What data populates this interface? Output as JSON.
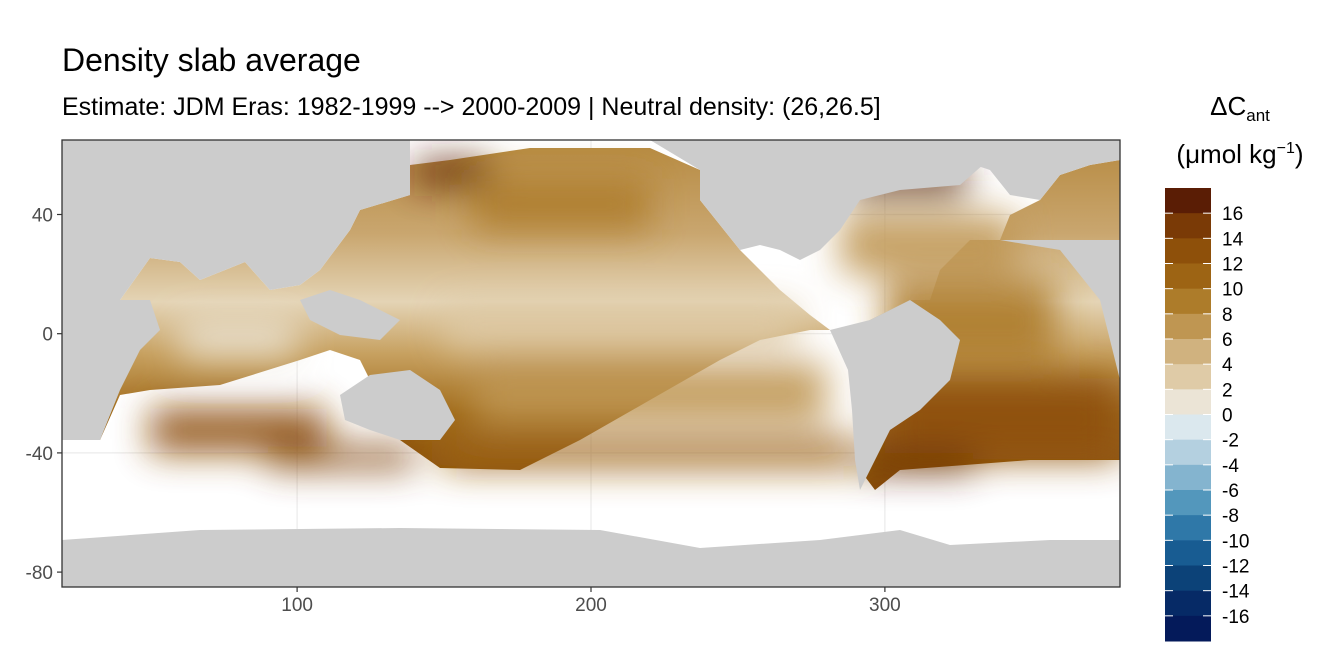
{
  "chart_data": {
    "type": "heatmap",
    "title": "Density slab average",
    "subtitle": "Estimate: JDM Eras: 1982-1999 --> 2000-2009 | Neutral density: (26,26.5]",
    "xlabel": "",
    "ylabel": "",
    "xlim": [
      20,
      380
    ],
    "ylim": [
      -85,
      65
    ],
    "x_ticks": [
      100,
      200,
      300
    ],
    "y_ticks": [
      40,
      0,
      -40,
      -80
    ],
    "grid": true,
    "legend": {
      "title_main": "ΔC",
      "title_sub": "ant",
      "unit_open": "(μmol kg",
      "unit_sup": "−1",
      "unit_close": ")",
      "placement": "right",
      "labels": [
        "16",
        "14",
        "12",
        "10",
        "8",
        "6",
        "4",
        "2",
        "0",
        "-2",
        "-4",
        "-6",
        "-8",
        "-10",
        "-12",
        "-14",
        "-16"
      ],
      "bins": [
        {
          "lo": 16,
          "hi": 18,
          "color": "#5a1d05"
        },
        {
          "lo": 14,
          "hi": 16,
          "color": "#7a3a06"
        },
        {
          "lo": 12,
          "hi": 14,
          "color": "#8e500a"
        },
        {
          "lo": 10,
          "hi": 12,
          "color": "#9d6414"
        },
        {
          "lo": 8,
          "hi": 10,
          "color": "#ad7c2a"
        },
        {
          "lo": 6,
          "hi": 8,
          "color": "#bf9652"
        },
        {
          "lo": 4,
          "hi": 6,
          "color": "#d0b27f"
        },
        {
          "lo": 2,
          "hi": 4,
          "color": "#dfcba7"
        },
        {
          "lo": 0,
          "hi": 2,
          "color": "#ebe4d6"
        },
        {
          "lo": -2,
          "hi": 0,
          "color": "#dbe8ee"
        },
        {
          "lo": -4,
          "hi": -2,
          "color": "#b4d0e0"
        },
        {
          "lo": -6,
          "hi": -4,
          "color": "#84b4cf"
        },
        {
          "lo": -8,
          "hi": -6,
          "color": "#5397bc"
        },
        {
          "lo": -10,
          "hi": -8,
          "color": "#2f78a8"
        },
        {
          "lo": -12,
          "hi": -10,
          "color": "#185c92"
        },
        {
          "lo": -14,
          "hi": -12,
          "color": "#0c4278"
        },
        {
          "lo": -16,
          "hi": -14,
          "color": "#062a66"
        },
        {
          "lo": -18,
          "hi": -16,
          "color": "#041a5a"
        }
      ]
    },
    "colors": {
      "land": "#cccccc",
      "no_data": "#ffffff",
      "panel_border": "#333333",
      "grid": "#ebebeb"
    },
    "field_regions": [
      {
        "name": "north-atlantic-subpolar",
        "value": 17,
        "lon": [
          288,
          328
        ],
        "lat": [
          46,
          56
        ]
      },
      {
        "name": "north-atlantic-subtropical",
        "value": 7,
        "lon": [
          285,
          345
        ],
        "lat": [
          20,
          40
        ]
      },
      {
        "name": "tropical-atlantic",
        "value": 8,
        "lon": [
          300,
          358
        ],
        "lat": [
          -10,
          18
        ]
      },
      {
        "name": "south-atlantic",
        "value": 13,
        "lon": [
          300,
          380
        ],
        "lat": [
          -42,
          -15
        ]
      },
      {
        "name": "south-atlantic-southern-edge",
        "value": 17,
        "lon": [
          292,
          330
        ],
        "lat": [
          -46,
          -40
        ]
      },
      {
        "name": "north-pacific-north",
        "value": 9,
        "lon": [
          160,
          220
        ],
        "lat": [
          35,
          52
        ]
      },
      {
        "name": "kamchatka-okhotsk",
        "value": 16,
        "lon": [
          140,
          165
        ],
        "lat": [
          50,
          58
        ]
      },
      {
        "name": "equatorial-pacific",
        "value": 2,
        "lon": [
          150,
          270
        ],
        "lat": [
          -5,
          10
        ]
      },
      {
        "name": "south-pacific",
        "value": 6,
        "lon": [
          160,
          280
        ],
        "lat": [
          -30,
          -10
        ]
      },
      {
        "name": "south-pacific-southern-belt",
        "value": 11,
        "lon": [
          150,
          290
        ],
        "lat": [
          -45,
          -35
        ]
      },
      {
        "name": "equatorial-indian",
        "value": 1,
        "lon": [
          60,
          100
        ],
        "lat": [
          -8,
          5
        ]
      },
      {
        "name": "south-indian",
        "value": 12,
        "lon": [
          50,
          110
        ],
        "lat": [
          -40,
          -25
        ]
      },
      {
        "name": "south-indian-southern-edge",
        "value": 15,
        "lon": [
          90,
          140
        ],
        "lat": [
          -45,
          -38
        ]
      }
    ]
  }
}
